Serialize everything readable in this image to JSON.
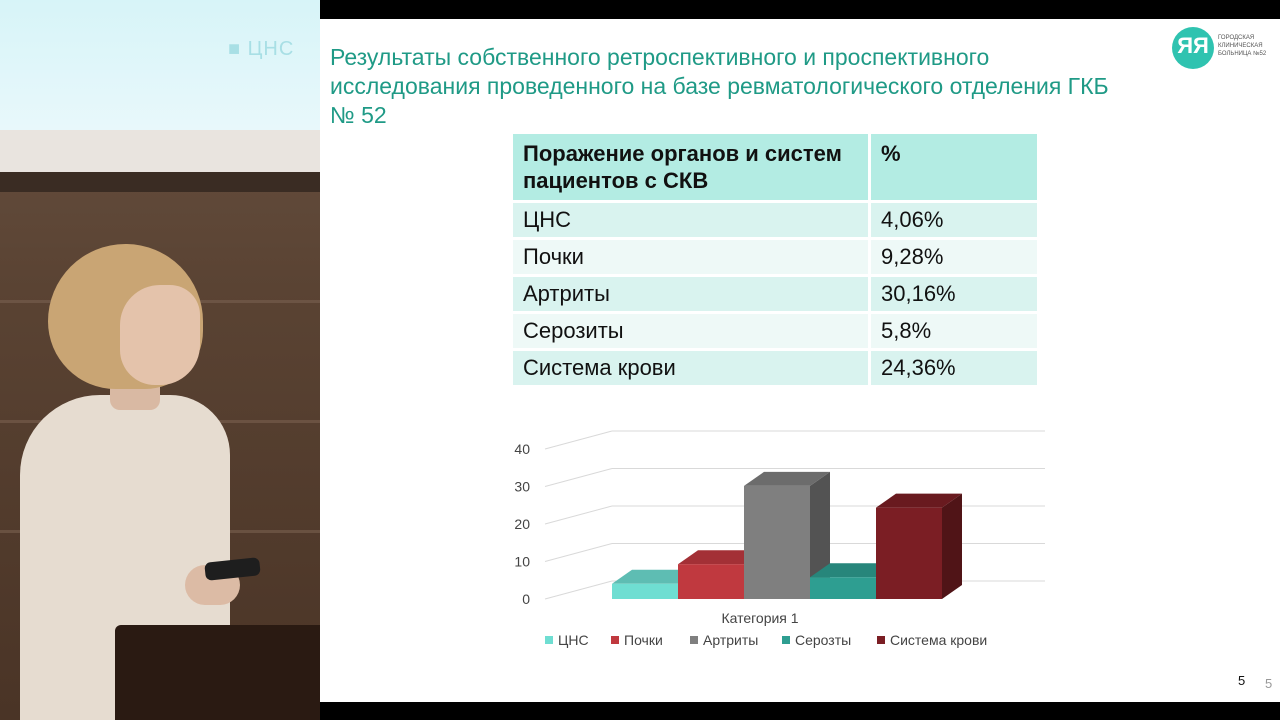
{
  "projector": {
    "text": "■ ЦНС"
  },
  "slide": {
    "title": "Результаты собственного ретроспективного и проспективного исследования проведенного на базе ревматологического отделения ГКБ № 52",
    "logo_text": "ГОРОДСКАЯ КЛИНИЧЕСКАЯ БОЛЬНИЦА №52",
    "page_number": "5"
  },
  "outer_page_number": "5",
  "table": {
    "headers": [
      "Поражение органов и систем пациентов с СКВ",
      "%"
    ],
    "rows": [
      [
        "ЦНС",
        "4,06%"
      ],
      [
        "Почки",
        "9,28%"
      ],
      [
        "Артриты",
        "30,16%"
      ],
      [
        "Серозиты",
        "5,8%"
      ],
      [
        "Система крови",
        "24,36%"
      ]
    ]
  },
  "chart_data": {
    "type": "bar",
    "categories": [
      "Категория 1"
    ],
    "xlabel": "Категория 1",
    "ylim": [
      0,
      40
    ],
    "yticks": [
      "0",
      "10",
      "20",
      "30",
      "40"
    ],
    "legend_position": "bottom",
    "grid": true,
    "series": [
      {
        "name": "ЦНС",
        "values": [
          4.06
        ],
        "color": "#6fded2"
      },
      {
        "name": "Почки",
        "values": [
          9.28
        ],
        "color": "#c0393f"
      },
      {
        "name": "Артриты",
        "values": [
          30.16
        ],
        "color": "#7f7f7f"
      },
      {
        "name": "Серозты",
        "values": [
          5.8
        ],
        "color": "#2e9e91"
      },
      {
        "name": "Система крови",
        "values": [
          24.36
        ],
        "color": "#7b1e24"
      }
    ]
  }
}
